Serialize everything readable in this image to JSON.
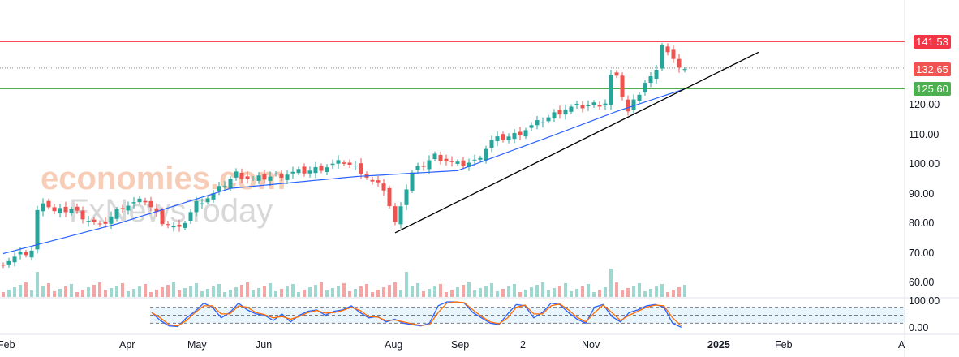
{
  "chart_data": {
    "type": "candlestick",
    "watermark": [
      "economies.com",
      "FxNewsToday"
    ],
    "y_axis": {
      "ticks": [
        "120.00",
        "110.00",
        "100.00",
        "90.00",
        "80.00",
        "70.00",
        "60.00"
      ],
      "values": [
        120,
        110,
        100,
        90,
        80,
        70,
        60
      ],
      "range": [
        57,
        143
      ]
    },
    "x_axis": {
      "ticks": [
        "Feb",
        "Apr",
        "May",
        "Jun",
        "Aug",
        "Sep",
        "2",
        "Nov",
        "2025",
        "Feb",
        "A"
      ]
    },
    "levels": [
      {
        "label": "141.53",
        "value": 141.53,
        "color": "#f23645",
        "kind": "resistance"
      },
      {
        "label": "132.65",
        "value": 132.65,
        "color": "#f05350",
        "kind": "last-price"
      },
      {
        "label": "125.60",
        "value": 125.6,
        "color": "#4caf50",
        "kind": "support"
      }
    ],
    "close_keypoints": [
      [
        0,
        67
      ],
      [
        5,
        71
      ],
      [
        6,
        84
      ],
      [
        7,
        88
      ],
      [
        9,
        84
      ],
      [
        12,
        85
      ],
      [
        17,
        79
      ],
      [
        21,
        86
      ],
      [
        25,
        88
      ],
      [
        28,
        81
      ],
      [
        31,
        78
      ],
      [
        34,
        87
      ],
      [
        37,
        90
      ],
      [
        41,
        97
      ],
      [
        44,
        95
      ],
      [
        50,
        97
      ],
      [
        54,
        98
      ],
      [
        60,
        101
      ],
      [
        63,
        98
      ],
      [
        65,
        94
      ],
      [
        67,
        92
      ],
      [
        69,
        80
      ],
      [
        70,
        87
      ],
      [
        72,
        97
      ],
      [
        76,
        103
      ],
      [
        80,
        100
      ],
      [
        83,
        101
      ],
      [
        86,
        108
      ],
      [
        90,
        110
      ],
      [
        94,
        114
      ],
      [
        99,
        119
      ],
      [
        103,
        120
      ],
      [
        106,
        121
      ],
      [
        107,
        130
      ],
      [
        108,
        129
      ],
      [
        110,
        118
      ],
      [
        113,
        128
      ],
      [
        115,
        131
      ],
      [
        116,
        141
      ],
      [
        118,
        135
      ],
      [
        120,
        132.65
      ]
    ],
    "ma_keypoints": [
      [
        0,
        70
      ],
      [
        20,
        80
      ],
      [
        40,
        92
      ],
      [
        62,
        96
      ],
      [
        80,
        98
      ],
      [
        97,
        110
      ],
      [
        108,
        118
      ],
      [
        120,
        125.6
      ]
    ],
    "trendline": [
      [
        69,
        77
      ],
      [
        133,
        138
      ]
    ],
    "oscillator": {
      "ticks": [
        "100.00",
        "0.00"
      ],
      "bands": [
        80,
        20
      ],
      "k": [
        60,
        30,
        10,
        8,
        40,
        65,
        95,
        80,
        40,
        60,
        95,
        70,
        55,
        50,
        30,
        55,
        25,
        50,
        65,
        70,
        50,
        65,
        70,
        85,
        60,
        40,
        45,
        25,
        35,
        20,
        15,
        10,
        20,
        85,
        100,
        100,
        95,
        60,
        40,
        20,
        15,
        55,
        90,
        85,
        40,
        60,
        95,
        90,
        60,
        35,
        20,
        80,
        90,
        45,
        25,
        60,
        70,
        85,
        90,
        80,
        20,
        5
      ],
      "d": [
        60,
        40,
        15,
        10,
        30,
        60,
        85,
        85,
        55,
        55,
        85,
        80,
        60,
        52,
        40,
        45,
        35,
        45,
        60,
        68,
        58,
        60,
        68,
        80,
        68,
        45,
        43,
        30,
        32,
        25,
        18,
        12,
        15,
        60,
        95,
        100,
        97,
        70,
        45,
        25,
        18,
        40,
        80,
        88,
        55,
        55,
        85,
        92,
        70,
        42,
        25,
        60,
        88,
        60,
        30,
        50,
        65,
        80,
        88,
        85,
        40,
        10
      ]
    }
  }
}
